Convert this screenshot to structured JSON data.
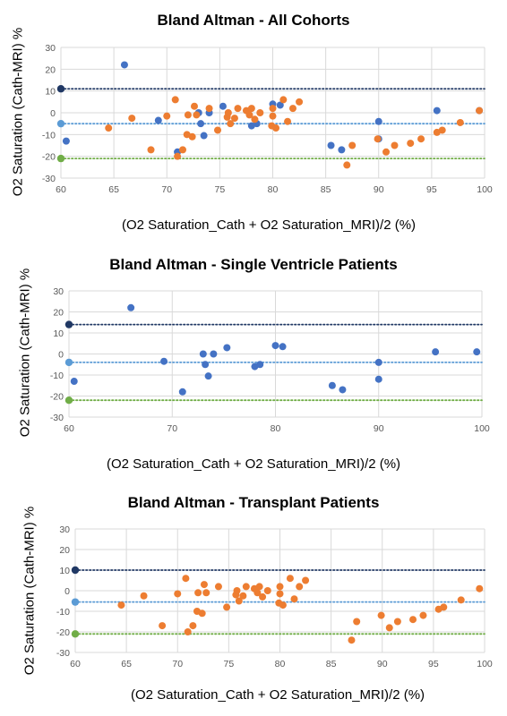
{
  "colors": {
    "cohort_blue": "#4472C4",
    "transplant_orange": "#ED7D31",
    "mean_line": "#5B9BD5",
    "upper_loa": "#203864",
    "lower_loa": "#70AD47",
    "gridline": "#d9d9d9"
  },
  "chart_data": [
    {
      "type": "scatter",
      "title": "Bland Altman - All Cohorts",
      "xlabel": "(O2 Saturation_Cath + O2 Saturation_MRI)/2 (%)",
      "ylabel": "O2 Saturation (Cath-MRI) %",
      "xlim": [
        60,
        100
      ],
      "ylim": [
        -30,
        30
      ],
      "xticks": [
        60,
        65,
        70,
        75,
        80,
        85,
        90,
        95,
        100
      ],
      "yticks": [
        -30,
        -20,
        -10,
        0,
        10,
        20,
        30
      ],
      "grid": true,
      "reference_lines": {
        "upper": 11,
        "mean": -5,
        "lower": -21
      },
      "series": [
        {
          "color": "#4472C4",
          "points": [
            [
              60.5,
              -13
            ],
            [
              66,
              22
            ],
            [
              69.2,
              -3.5
            ],
            [
              71,
              -18
            ],
            [
              73,
              0
            ],
            [
              73.2,
              -5
            ],
            [
              73.5,
              -10.5
            ],
            [
              74,
              0
            ],
            [
              75.3,
              3
            ],
            [
              78,
              -6
            ],
            [
              78.5,
              -5
            ],
            [
              80,
              4
            ],
            [
              80.7,
              3.5
            ],
            [
              85.5,
              -15
            ],
            [
              86.5,
              -17
            ],
            [
              90,
              -12
            ],
            [
              90,
              -4
            ],
            [
              95.5,
              1
            ],
            [
              99.5,
              1
            ]
          ]
        },
        {
          "color": "#ED7D31",
          "points": [
            [
              64.5,
              -7
            ],
            [
              66.7,
              -2.5
            ],
            [
              68.5,
              -17
            ],
            [
              70,
              -1.5
            ],
            [
              70.8,
              6
            ],
            [
              71,
              -20
            ],
            [
              71.5,
              -17
            ],
            [
              71.9,
              -10
            ],
            [
              72,
              -1
            ],
            [
              72.4,
              -11
            ],
            [
              72.6,
              3
            ],
            [
              72.8,
              -1
            ],
            [
              74,
              2
            ],
            [
              74.8,
              -8
            ],
            [
              75.7,
              -2
            ],
            [
              75.8,
              0
            ],
            [
              76,
              -5
            ],
            [
              76.4,
              -2.5
            ],
            [
              76.7,
              2
            ],
            [
              77.5,
              1
            ],
            [
              77.8,
              -1
            ],
            [
              78,
              2
            ],
            [
              78.3,
              -3
            ],
            [
              78.8,
              0
            ],
            [
              79.9,
              -6
            ],
            [
              80,
              -1.5
            ],
            [
              80,
              2
            ],
            [
              80.3,
              -7
            ],
            [
              81,
              6
            ],
            [
              81.4,
              -4
            ],
            [
              81.9,
              2
            ],
            [
              82.5,
              5
            ],
            [
              87,
              -24
            ],
            [
              87.5,
              -15
            ],
            [
              89.9,
              -12
            ],
            [
              90.7,
              -18
            ],
            [
              91.5,
              -15
            ],
            [
              93,
              -14
            ],
            [
              94,
              -12
            ],
            [
              95.5,
              -9
            ],
            [
              96,
              -8
            ],
            [
              97.7,
              -4.5
            ],
            [
              99.5,
              1
            ]
          ]
        }
      ]
    },
    {
      "type": "scatter",
      "title": "Bland Altman - Single Ventricle Patients",
      "xlabel": "(O2 Saturation_Cath + O2 Saturation_MRI)/2 (%)",
      "ylabel": "O2 Saturation (Cath-MRI) %",
      "xlim": [
        60,
        100
      ],
      "ylim": [
        -30,
        30
      ],
      "xticks": [
        60,
        70,
        80,
        90,
        100
      ],
      "yticks": [
        -30,
        -20,
        -10,
        0,
        10,
        20,
        30
      ],
      "grid": true,
      "reference_lines": {
        "upper": 14,
        "mean": -4,
        "lower": -22
      },
      "series": [
        {
          "color": "#4472C4",
          "points": [
            [
              60.5,
              -13
            ],
            [
              66,
              22
            ],
            [
              69.2,
              -3.5
            ],
            [
              71,
              -18
            ],
            [
              73,
              0
            ],
            [
              73.2,
              -5
            ],
            [
              73.5,
              -10.5
            ],
            [
              74,
              0
            ],
            [
              75.3,
              3
            ],
            [
              78,
              -6
            ],
            [
              78.5,
              -5
            ],
            [
              80,
              4
            ],
            [
              80.7,
              3.5
            ],
            [
              85.5,
              -15
            ],
            [
              86.5,
              -17
            ],
            [
              90,
              -12
            ],
            [
              90,
              -4
            ],
            [
              95.5,
              1
            ],
            [
              99.5,
              1
            ]
          ]
        }
      ]
    },
    {
      "type": "scatter",
      "title": "Bland Altman - Transplant Patients",
      "xlabel": "(O2 Saturation_Cath + O2 Saturation_MRI)/2 (%)",
      "ylabel": "O2 Saturation (Cath-MRI) %",
      "xlim": [
        60,
        100
      ],
      "ylim": [
        -30,
        30
      ],
      "xticks": [
        60,
        65,
        70,
        75,
        80,
        85,
        90,
        95,
        100
      ],
      "yticks": [
        -30,
        -20,
        -10,
        0,
        10,
        20,
        30
      ],
      "grid": true,
      "reference_lines": {
        "upper": 10,
        "mean": -5.5,
        "lower": -21
      },
      "series": [
        {
          "color": "#ED7D31",
          "points": [
            [
              64.5,
              -7
            ],
            [
              66.7,
              -2.5
            ],
            [
              68.5,
              -17
            ],
            [
              70,
              -1.5
            ],
            [
              70.8,
              6
            ],
            [
              71,
              -20
            ],
            [
              71.5,
              -17
            ],
            [
              71.9,
              -10
            ],
            [
              72,
              -1
            ],
            [
              72.4,
              -11
            ],
            [
              72.6,
              3
            ],
            [
              72.8,
              -1
            ],
            [
              74,
              2
            ],
            [
              74.8,
              -8
            ],
            [
              75.7,
              -2
            ],
            [
              75.8,
              0
            ],
            [
              76,
              -5
            ],
            [
              76.4,
              -2.5
            ],
            [
              76.7,
              2
            ],
            [
              77.5,
              1
            ],
            [
              77.8,
              -1
            ],
            [
              78,
              2
            ],
            [
              78.3,
              -3
            ],
            [
              78.8,
              0
            ],
            [
              79.9,
              -6
            ],
            [
              80,
              -1.5
            ],
            [
              80,
              2
            ],
            [
              80.3,
              -7
            ],
            [
              81,
              6
            ],
            [
              81.4,
              -4
            ],
            [
              81.9,
              2
            ],
            [
              82.5,
              5
            ],
            [
              87,
              -24
            ],
            [
              87.5,
              -15
            ],
            [
              89.9,
              -12
            ],
            [
              90.7,
              -18
            ],
            [
              91.5,
              -15
            ],
            [
              93,
              -14
            ],
            [
              94,
              -12
            ],
            [
              95.5,
              -9
            ],
            [
              96,
              -8
            ],
            [
              97.7,
              -4.5
            ],
            [
              99.5,
              1
            ]
          ]
        }
      ]
    }
  ]
}
